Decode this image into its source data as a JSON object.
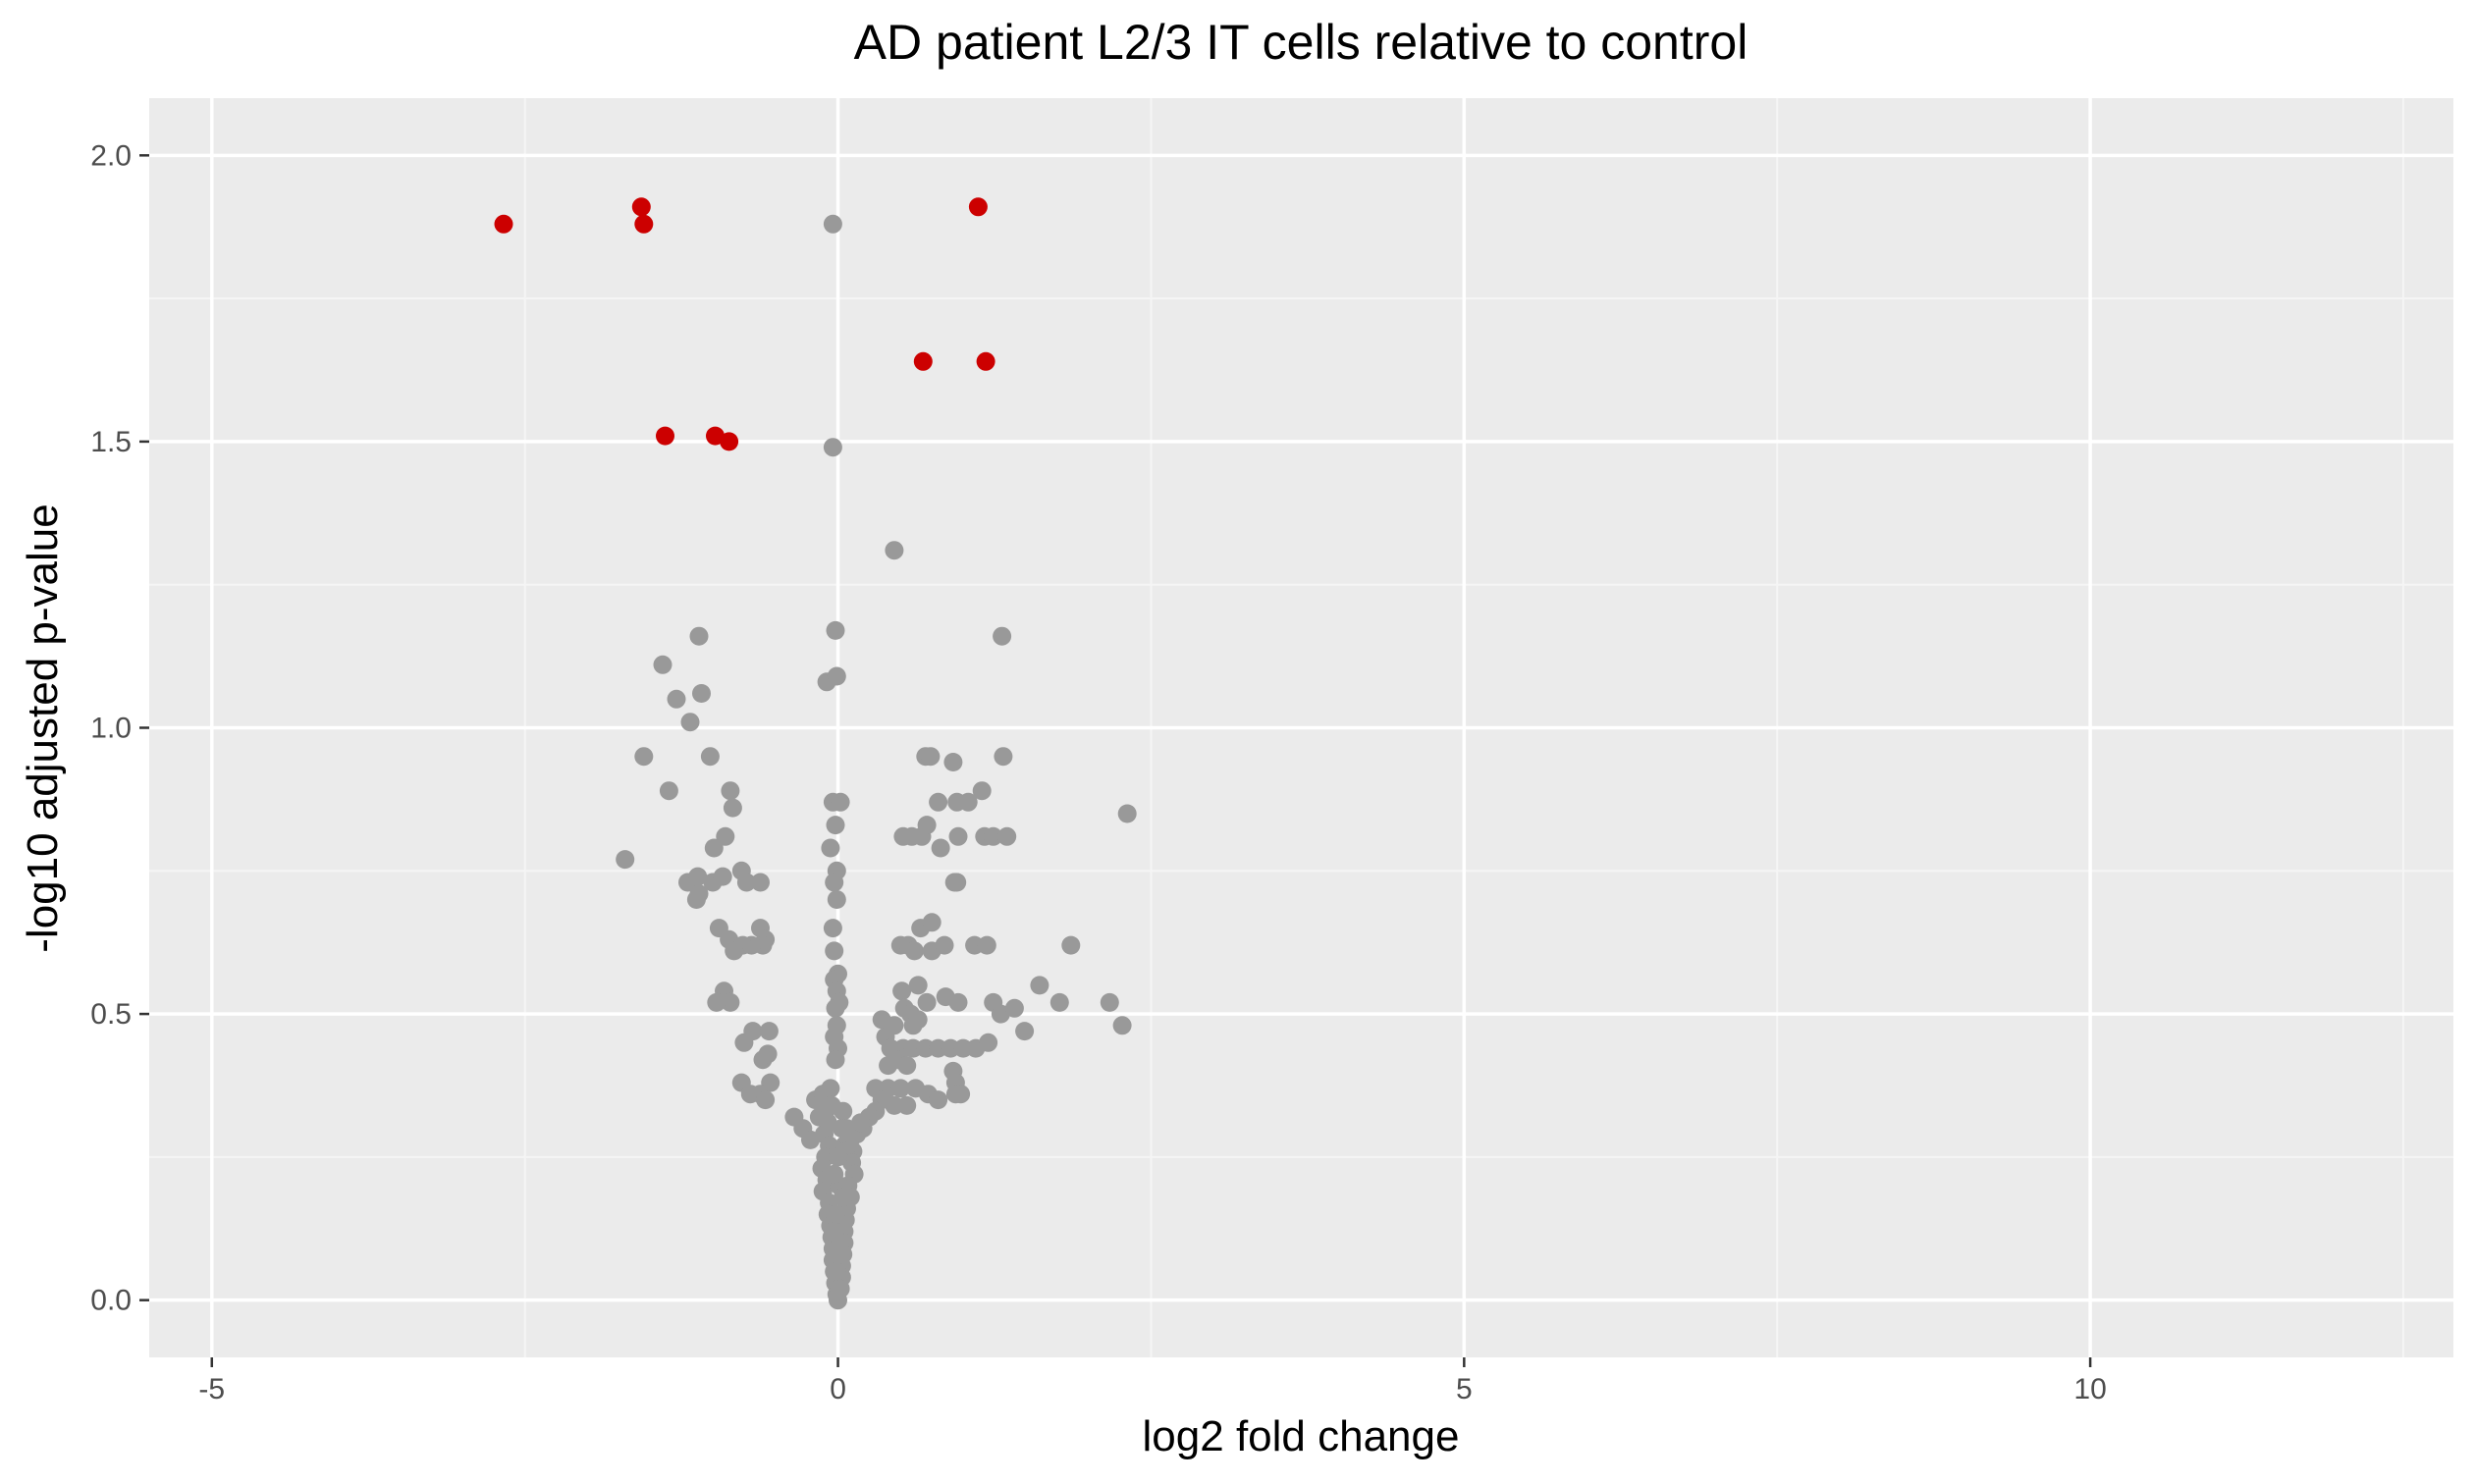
{
  "chart_data": {
    "type": "scatter",
    "title": "AD patient L2/3 IT cells relative to control",
    "xlabel": "log2 fold change",
    "ylabel": "-log10 adjusted p-value",
    "xlim": [
      -5.5,
      12.9
    ],
    "ylim": [
      -0.1,
      2.1
    ],
    "x_ticks": [
      -5,
      0,
      5,
      10
    ],
    "x_tick_labels": [
      "-5",
      "0",
      "5",
      "10"
    ],
    "y_ticks": [
      0.0,
      0.5,
      1.0,
      1.5,
      2.0
    ],
    "y_tick_labels": [
      "0.0",
      "0.5",
      "1.0",
      "1.5",
      "2.0"
    ],
    "grid": true,
    "legend": "none",
    "colors": {
      "panel_background": "#ebebeb",
      "grid_major": "#ffffff",
      "grid_minor": "#f5f5f5",
      "significant": "#cc0000",
      "not_significant": "#999999",
      "tick_text": "#4d4d4d",
      "tick_mark": "#333333"
    },
    "series": [
      {
        "significance": "significant",
        "color": "#cc0000",
        "points": [
          [
            -2.67,
            1.88
          ],
          [
            -1.57,
            1.91
          ],
          [
            -1.55,
            1.88
          ],
          [
            1.12,
            1.91
          ],
          [
            0.68,
            1.64
          ],
          [
            1.18,
            1.64
          ],
          [
            -1.38,
            1.51
          ],
          [
            -0.98,
            1.51
          ],
          [
            -0.87,
            1.5
          ]
        ]
      },
      {
        "significance": "not significant",
        "color": "#999999",
        "points": [
          [
            -0.04,
            1.88
          ],
          [
            -0.04,
            1.49
          ],
          [
            0.45,
            1.31
          ],
          [
            -0.02,
            1.17
          ],
          [
            -0.09,
            1.08
          ],
          [
            -0.01,
            1.09
          ],
          [
            1.31,
            1.16
          ],
          [
            -1.11,
            1.16
          ],
          [
            -1.4,
            1.11
          ],
          [
            -1.29,
            1.05
          ],
          [
            -1.09,
            1.06
          ],
          [
            -1.18,
            1.01
          ],
          [
            -1.55,
            0.95
          ],
          [
            -1.02,
            0.95
          ],
          [
            -1.35,
            0.89
          ],
          [
            -0.86,
            0.89
          ],
          [
            -0.84,
            0.86
          ],
          [
            -0.9,
            0.81
          ],
          [
            -0.99,
            0.79
          ],
          [
            -1.7,
            0.77
          ],
          [
            -1.2,
            0.73
          ],
          [
            -1.12,
            0.74
          ],
          [
            -1.0,
            0.73
          ],
          [
            -0.92,
            0.74
          ],
          [
            -0.77,
            0.75
          ],
          [
            -0.73,
            0.73
          ],
          [
            -0.62,
            0.73
          ],
          [
            -1.13,
            0.7
          ],
          [
            -1.11,
            0.71
          ],
          [
            -0.95,
            0.65
          ],
          [
            -0.87,
            0.63
          ],
          [
            -0.62,
            0.65
          ],
          [
            -0.58,
            0.63
          ],
          [
            -0.6,
            0.62
          ],
          [
            -0.69,
            0.62
          ],
          [
            -0.76,
            0.62
          ],
          [
            -0.83,
            0.61
          ],
          [
            -0.91,
            0.54
          ],
          [
            -0.86,
            0.52
          ],
          [
            -0.97,
            0.52
          ],
          [
            -0.68,
            0.47
          ],
          [
            -0.55,
            0.47
          ],
          [
            -0.75,
            0.45
          ],
          [
            -0.6,
            0.42
          ],
          [
            -0.56,
            0.43
          ],
          [
            -0.77,
            0.38
          ],
          [
            -0.54,
            0.38
          ],
          [
            -0.7,
            0.36
          ],
          [
            -0.62,
            0.36
          ],
          [
            -0.58,
            0.35
          ],
          [
            -0.35,
            0.32
          ],
          [
            -0.28,
            0.3
          ],
          [
            -0.22,
            0.28
          ],
          [
            -0.18,
            0.35
          ],
          [
            -0.12,
            0.36
          ],
          [
            -0.06,
            0.37
          ],
          [
            -0.15,
            0.32
          ],
          [
            -0.1,
            0.33
          ],
          [
            -0.04,
            0.87
          ],
          [
            0.02,
            0.87
          ],
          [
            -0.02,
            0.83
          ],
          [
            -0.06,
            0.79
          ],
          [
            -0.01,
            0.75
          ],
          [
            -0.03,
            0.73
          ],
          [
            -0.01,
            0.7
          ],
          [
            -0.04,
            0.65
          ],
          [
            -0.03,
            0.61
          ],
          [
            0.0,
            0.57
          ],
          [
            -0.03,
            0.56
          ],
          [
            -0.01,
            0.54
          ],
          [
            0.01,
            0.52
          ],
          [
            -0.02,
            0.51
          ],
          [
            -0.01,
            0.48
          ],
          [
            -0.03,
            0.46
          ],
          [
            0.0,
            0.44
          ],
          [
            -0.02,
            0.42
          ],
          [
            0.7,
            0.95
          ],
          [
            0.74,
            0.95
          ],
          [
            0.92,
            0.94
          ],
          [
            1.32,
            0.95
          ],
          [
            1.15,
            0.89
          ],
          [
            0.8,
            0.87
          ],
          [
            1.04,
            0.87
          ],
          [
            0.95,
            0.87
          ],
          [
            2.31,
            0.85
          ],
          [
            0.52,
            0.81
          ],
          [
            0.59,
            0.81
          ],
          [
            0.67,
            0.81
          ],
          [
            0.96,
            0.81
          ],
          [
            1.17,
            0.81
          ],
          [
            1.24,
            0.81
          ],
          [
            1.35,
            0.81
          ],
          [
            0.71,
            0.83
          ],
          [
            0.82,
            0.79
          ],
          [
            0.93,
            0.73
          ],
          [
            0.95,
            0.73
          ],
          [
            0.66,
            0.65
          ],
          [
            0.75,
            0.66
          ],
          [
            0.5,
            0.62
          ],
          [
            0.56,
            0.62
          ],
          [
            0.61,
            0.61
          ],
          [
            0.75,
            0.61
          ],
          [
            0.85,
            0.62
          ],
          [
            1.09,
            0.62
          ],
          [
            1.19,
            0.62
          ],
          [
            1.86,
            0.62
          ],
          [
            1.61,
            0.55
          ],
          [
            1.77,
            0.52
          ],
          [
            2.17,
            0.52
          ],
          [
            2.27,
            0.48
          ],
          [
            1.24,
            0.52
          ],
          [
            1.3,
            0.5
          ],
          [
            1.41,
            0.51
          ],
          [
            1.49,
            0.47
          ],
          [
            0.86,
            0.53
          ],
          [
            0.96,
            0.52
          ],
          [
            0.51,
            0.54
          ],
          [
            0.64,
            0.55
          ],
          [
            0.71,
            0.52
          ],
          [
            0.53,
            0.51
          ],
          [
            0.58,
            0.5
          ],
          [
            0.35,
            0.49
          ],
          [
            0.45,
            0.48
          ],
          [
            0.6,
            0.48
          ],
          [
            0.64,
            0.49
          ],
          [
            0.38,
            0.46
          ],
          [
            0.42,
            0.44
          ],
          [
            0.52,
            0.44
          ],
          [
            0.6,
            0.44
          ],
          [
            0.7,
            0.44
          ],
          [
            0.8,
            0.44
          ],
          [
            0.9,
            0.44
          ],
          [
            1.0,
            0.44
          ],
          [
            1.1,
            0.44
          ],
          [
            1.2,
            0.45
          ],
          [
            0.4,
            0.41
          ],
          [
            0.48,
            0.42
          ],
          [
            0.55,
            0.41
          ],
          [
            0.92,
            0.4
          ],
          [
            0.94,
            0.38
          ],
          [
            0.3,
            0.37
          ],
          [
            0.4,
            0.37
          ],
          [
            0.5,
            0.37
          ],
          [
            0.62,
            0.37
          ],
          [
            0.72,
            0.36
          ],
          [
            0.8,
            0.35
          ],
          [
            0.94,
            0.36
          ],
          [
            0.98,
            0.36
          ],
          [
            0.35,
            0.35
          ],
          [
            0.45,
            0.34
          ],
          [
            0.55,
            0.34
          ],
          [
            0.3,
            0.33
          ],
          [
            0.25,
            0.32
          ],
          [
            0.2,
            0.3
          ],
          [
            0.15,
            0.29
          ],
          [
            0.1,
            0.28
          ],
          [
            0.05,
            0.27
          ],
          [
            0.12,
            0.26
          ],
          [
            0.18,
            0.31
          ],
          [
            -0.05,
            0.34
          ],
          [
            0.04,
            0.33
          ],
          [
            -0.08,
            0.31
          ],
          [
            0.07,
            0.3
          ],
          [
            -0.11,
            0.29
          ],
          [
            0.09,
            0.28
          ],
          [
            -0.07,
            0.27
          ],
          [
            0.06,
            0.26
          ],
          [
            -0.1,
            0.25
          ],
          [
            0.11,
            0.24
          ],
          [
            -0.13,
            0.23
          ],
          [
            0.13,
            0.22
          ],
          [
            -0.09,
            0.21
          ],
          [
            0.08,
            0.2
          ],
          [
            -0.12,
            0.19
          ],
          [
            0.1,
            0.18
          ],
          [
            -0.07,
            0.17
          ],
          [
            0.07,
            0.16
          ],
          [
            -0.08,
            0.15
          ],
          [
            0.06,
            0.14
          ],
          [
            -0.06,
            0.13
          ],
          [
            0.05,
            0.12
          ],
          [
            -0.05,
            0.11
          ],
          [
            0.05,
            0.1
          ],
          [
            -0.04,
            0.09
          ],
          [
            0.04,
            0.08
          ],
          [
            -0.04,
            0.07
          ],
          [
            0.03,
            0.06
          ],
          [
            -0.03,
            0.05
          ],
          [
            0.03,
            0.04
          ],
          [
            -0.02,
            0.03
          ],
          [
            0.02,
            0.02
          ],
          [
            -0.01,
            0.01
          ],
          [
            0.0,
            0.0
          ],
          [
            0.01,
            0.02
          ],
          [
            -0.01,
            0.05
          ],
          [
            0.02,
            0.1
          ],
          [
            -0.02,
            0.15
          ],
          [
            0.01,
            0.2
          ],
          [
            0.0,
            0.25
          ],
          [
            0.03,
            0.3
          ],
          [
            -0.03,
            0.22
          ],
          [
            0.04,
            0.18
          ],
          [
            -0.04,
            0.12
          ],
          [
            0.0,
            0.08
          ]
        ]
      }
    ]
  }
}
